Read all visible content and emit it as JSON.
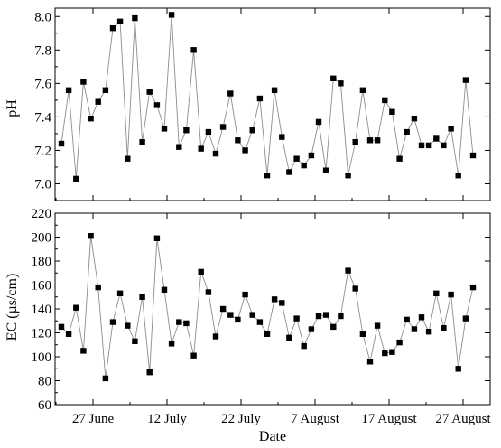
{
  "chart_data": [
    {
      "type": "line",
      "marker": "square",
      "ylabel": "pH",
      "ylim": [
        6.9,
        8.05
      ],
      "yticks": [
        7.0,
        7.2,
        7.4,
        7.6,
        7.8,
        8.0
      ],
      "ytick_labels": [
        "7.0",
        "7.2",
        "7.4",
        "7.6",
        "7.8",
        "8.0"
      ],
      "series": [
        {
          "values": [
            7.24,
            7.56,
            7.03,
            7.61,
            7.39,
            7.49,
            7.56,
            7.93,
            7.97,
            7.15,
            7.99,
            7.25,
            7.55,
            7.47,
            7.33,
            8.01,
            7.22,
            7.32,
            7.8,
            7.21,
            7.31,
            7.18,
            7.34,
            7.54,
            7.26,
            7.2,
            7.32,
            7.51,
            7.05,
            7.56,
            7.28,
            7.07,
            7.15,
            7.11,
            7.17,
            7.37,
            7.08,
            7.63,
            7.6,
            7.05,
            7.25,
            7.56,
            7.26,
            7.26,
            7.5,
            7.43,
            7.15,
            7.31,
            7.39,
            7.23,
            7.23,
            7.27,
            7.23,
            7.33,
            7.05,
            7.62,
            7.17
          ]
        }
      ],
      "grid": false
    },
    {
      "type": "line",
      "marker": "square",
      "ylabel": "EC (µs/cm)",
      "xlabel": "Date",
      "ylim": [
        60,
        220
      ],
      "yticks": [
        60,
        80,
        100,
        120,
        140,
        160,
        180,
        200,
        220
      ],
      "ytick_labels": [
        "60",
        "80",
        "100",
        "120",
        "140",
        "160",
        "180",
        "200",
        "220"
      ],
      "x_tick_labels": [
        "27 June",
        "12 July",
        "22 July",
        "7 August",
        "17 August",
        "27 August"
      ],
      "series": [
        {
          "values": [
            125,
            119,
            141,
            105,
            201,
            158,
            82,
            129,
            153,
            126,
            113,
            150,
            87,
            199,
            156,
            111,
            129,
            128,
            101,
            171,
            154,
            117,
            140,
            135,
            131,
            152,
            135,
            129,
            119,
            148,
            145,
            116,
            132,
            109,
            123,
            134,
            135,
            125,
            134,
            172,
            157,
            119,
            96,
            126,
            103,
            104,
            112,
            131,
            123,
            133,
            121,
            153,
            124,
            152,
            90,
            132,
            158
          ]
        }
      ],
      "grid": false
    }
  ]
}
